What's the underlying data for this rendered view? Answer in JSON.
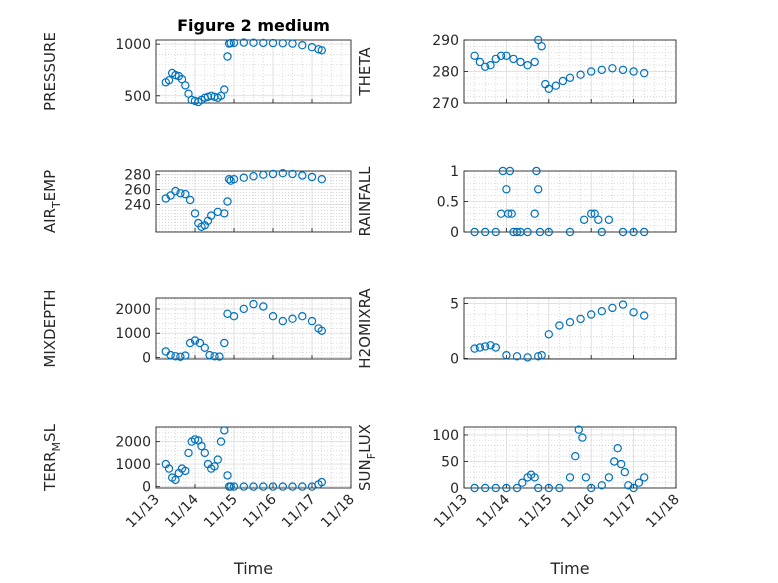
{
  "chart_data": [
    {
      "type": "scatter",
      "title": "Figure 2 medium",
      "ylabel": "PRESSURE",
      "xlabel": "",
      "xlim": [
        "11/13",
        "11/18"
      ],
      "ylim": [
        430,
        1040
      ],
      "yticks": [
        500,
        1000
      ],
      "grid": true,
      "x": [
        "11/13 06:00",
        "11/13 08:00",
        "11/13 10:00",
        "11/13 12:00",
        "11/13 14:00",
        "11/13 16:00",
        "11/13 18:00",
        "11/13 20:00",
        "11/13 22:00",
        "11/14 00:00",
        "11/14 02:00",
        "11/14 04:00",
        "11/14 06:00",
        "11/14 08:00",
        "11/14 10:00",
        "11/14 12:00",
        "11/14 14:00",
        "11/14 16:00",
        "11/14 18:00",
        "11/14 20:00",
        "11/14 21:00",
        "11/14 22:00",
        "11/15 00:00",
        "11/15 06:00",
        "11/15 12:00",
        "11/15 18:00",
        "11/16 00:00",
        "11/16 06:00",
        "11/16 12:00",
        "11/16 18:00",
        "11/17 00:00",
        "11/17 04:00",
        "11/17 06:00"
      ],
      "y": [
        630,
        650,
        720,
        700,
        690,
        660,
        600,
        520,
        460,
        450,
        440,
        460,
        480,
        490,
        500,
        490,
        480,
        500,
        560,
        880,
        1005,
        1010,
        1012,
        1015,
        1014,
        1012,
        1010,
        1008,
        1005,
        990,
        970,
        950,
        940
      ]
    },
    {
      "type": "scatter",
      "ylabel": "THETA",
      "xlabel": "",
      "xlim": [
        "11/13",
        "11/18"
      ],
      "ylim": [
        270,
        290
      ],
      "yticks": [
        270,
        280,
        290
      ],
      "grid": true,
      "x": [
        "11/13 06:00",
        "11/13 09:00",
        "11/13 12:00",
        "11/13 15:00",
        "11/13 18:00",
        "11/13 21:00",
        "11/14 00:00",
        "11/14 04:00",
        "11/14 08:00",
        "11/14 12:00",
        "11/14 16:00",
        "11/14 18:00",
        "11/14 20:00",
        "11/14 22:00",
        "11/15 00:00",
        "11/15 04:00",
        "11/15 08:00",
        "11/15 12:00",
        "11/15 18:00",
        "11/16 00:00",
        "11/16 06:00",
        "11/16 12:00",
        "11/16 18:00",
        "11/17 00:00",
        "11/17 06:00"
      ],
      "y": [
        285,
        283,
        281.5,
        282,
        284,
        285,
        285,
        284,
        283,
        282,
        283,
        290,
        288,
        276,
        274.5,
        275.5,
        277,
        278,
        279,
        280,
        280.5,
        281,
        280.5,
        280,
        279.5
      ]
    },
    {
      "type": "scatter",
      "ylabel": "AIR_TEMP",
      "xlabel": "",
      "xlim": [
        "11/13",
        "11/18"
      ],
      "ylim": [
        203,
        285
      ],
      "yticks": [
        240,
        260,
        280
      ],
      "grid": true,
      "x": [
        "11/13 06:00",
        "11/13 09:00",
        "11/13 12:00",
        "11/13 15:00",
        "11/13 18:00",
        "11/13 21:00",
        "11/14 00:00",
        "11/14 02:00",
        "11/14 04:00",
        "11/14 06:00",
        "11/14 08:00",
        "11/14 10:00",
        "11/14 14:00",
        "11/14 18:00",
        "11/14 20:00",
        "11/14 21:00",
        "11/14 22:00",
        "11/15 00:00",
        "11/15 06:00",
        "11/15 12:00",
        "11/15 18:00",
        "11/16 00:00",
        "11/16 06:00",
        "11/16 12:00",
        "11/16 18:00",
        "11/17 00:00",
        "11/17 06:00"
      ],
      "y": [
        248,
        252,
        258,
        255,
        254,
        246,
        228,
        215,
        210,
        212,
        218,
        225,
        230,
        228,
        244,
        274,
        272,
        274,
        276,
        278,
        280,
        281,
        282,
        281,
        279,
        277,
        274
      ]
    },
    {
      "type": "scatter",
      "ylabel": "RAINFALL",
      "xlabel": "",
      "xlim": [
        "11/13",
        "11/18"
      ],
      "ylim": [
        0,
        1
      ],
      "yticks": [
        0,
        0.5,
        1
      ],
      "grid": true,
      "x": [
        "11/13 06:00",
        "11/13 12:00",
        "11/13 18:00",
        "11/13 21:00",
        "11/13 22:00",
        "11/14 00:00",
        "11/14 01:00",
        "11/14 02:00",
        "11/14 03:00",
        "11/14 04:00",
        "11/14 06:00",
        "11/14 08:00",
        "11/14 12:00",
        "11/14 16:00",
        "11/14 17:00",
        "11/14 18:00",
        "11/14 19:00",
        "11/15 00:00",
        "11/15 12:00",
        "11/15 20:00",
        "11/16 00:00",
        "11/16 02:00",
        "11/16 04:00",
        "11/16 06:00",
        "11/16 10:00",
        "11/16 18:00",
        "11/17 00:00",
        "11/17 06:00"
      ],
      "y": [
        0,
        0,
        0,
        0.3,
        1,
        0.7,
        0.3,
        1,
        0.3,
        0,
        0,
        0,
        0,
        0.3,
        1,
        0.7,
        0,
        0,
        0,
        0.2,
        0.3,
        0.3,
        0.2,
        0,
        0.2,
        0,
        0,
        0
      ]
    },
    {
      "type": "scatter",
      "ylabel": "MIXDEPTH",
      "xlabel": "",
      "xlim": [
        "11/13",
        "11/18"
      ],
      "ylim": [
        -60,
        2450
      ],
      "yticks": [
        0,
        1000,
        2000
      ],
      "grid": true,
      "x": [
        "11/13 06:00",
        "11/13 09:00",
        "11/13 12:00",
        "11/13 15:00",
        "11/13 18:00",
        "11/13 21:00",
        "11/14 00:00",
        "11/14 03:00",
        "11/14 06:00",
        "11/14 09:00",
        "11/14 12:00",
        "11/14 15:00",
        "11/14 18:00",
        "11/14 20:00",
        "11/15 00:00",
        "11/15 06:00",
        "11/15 12:00",
        "11/15 18:00",
        "11/16 00:00",
        "11/16 06:00",
        "11/16 12:00",
        "11/16 18:00",
        "11/17 00:00",
        "11/17 04:00",
        "11/17 06:00"
      ],
      "y": [
        250,
        100,
        50,
        30,
        80,
        600,
        700,
        600,
        400,
        100,
        50,
        40,
        600,
        1800,
        1700,
        2000,
        2200,
        2100,
        1700,
        1500,
        1600,
        1700,
        1500,
        1200,
        1100
      ]
    },
    {
      "type": "scatter",
      "ylabel": "H2OMIXRA",
      "xlabel": "",
      "xlim": [
        "11/13",
        "11/18"
      ],
      "ylim": [
        -0.05,
        5.5
      ],
      "yticks": [
        0,
        5
      ],
      "grid": true,
      "x": [
        "11/13 06:00",
        "11/13 09:00",
        "11/13 12:00",
        "11/13 15:00",
        "11/13 18:00",
        "11/14 00:00",
        "11/14 06:00",
        "11/14 12:00",
        "11/14 18:00",
        "11/14 20:00",
        "11/15 00:00",
        "11/15 06:00",
        "11/15 12:00",
        "11/15 18:00",
        "11/16 00:00",
        "11/16 06:00",
        "11/16 12:00",
        "11/16 18:00",
        "11/17 00:00",
        "11/17 06:00"
      ],
      "y": [
        0.9,
        1,
        1.1,
        1.2,
        1,
        0.3,
        0.2,
        0.1,
        0.2,
        0.3,
        2.2,
        3,
        3.3,
        3.6,
        4,
        4.3,
        4.6,
        4.9,
        4.2,
        3.9
      ]
    },
    {
      "type": "scatter",
      "ylabel": "TERR_MSL",
      "xlabel": "Time",
      "xlim": [
        "11/13",
        "11/18"
      ],
      "xticks": [
        "11/13",
        "11/14",
        "11/15",
        "11/16",
        "11/17",
        "11/18"
      ],
      "ylim": [
        -60,
        2650
      ],
      "yticks": [
        0,
        1000,
        2000
      ],
      "grid": true,
      "x": [
        "11/13 06:00",
        "11/13 08:00",
        "11/13 10:00",
        "11/13 12:00",
        "11/13 14:00",
        "11/13 16:00",
        "11/13 18:00",
        "11/13 20:00",
        "11/13 22:00",
        "11/14 00:00",
        "11/14 02:00",
        "11/14 04:00",
        "11/14 06:00",
        "11/14 08:00",
        "11/14 10:00",
        "11/14 12:00",
        "11/14 14:00",
        "11/14 16:00",
        "11/14 18:00",
        "11/14 20:00",
        "11/14 21:00",
        "11/14 22:00",
        "11/15 00:00",
        "11/15 06:00",
        "11/15 12:00",
        "11/15 18:00",
        "11/16 00:00",
        "11/16 06:00",
        "11/16 12:00",
        "11/16 18:00",
        "11/17 00:00",
        "11/17 04:00",
        "11/17 06:00"
      ],
      "y": [
        1000,
        800,
        400,
        300,
        600,
        800,
        700,
        1500,
        2000,
        2100,
        2050,
        1800,
        1500,
        1000,
        800,
        900,
        1200,
        2000,
        2500,
        500,
        0,
        0,
        0,
        0,
        0,
        0,
        0,
        0,
        0,
        0,
        0,
        100,
        200
      ]
    },
    {
      "type": "scatter",
      "ylabel": "SUN_FLUX",
      "xlabel": "Time",
      "xlim": [
        "11/13",
        "11/18"
      ],
      "xticks": [
        "11/13",
        "11/14",
        "11/15",
        "11/16",
        "11/17",
        "11/18"
      ],
      "ylim": [
        0,
        115
      ],
      "yticks": [
        0,
        50,
        100
      ],
      "grid": true,
      "x": [
        "11/13 06:00",
        "11/13 12:00",
        "11/13 18:00",
        "11/14 00:00",
        "11/14 06:00",
        "11/14 09:00",
        "11/14 12:00",
        "11/14 14:00",
        "11/14 16:00",
        "11/14 18:00",
        "11/15 00:00",
        "11/15 06:00",
        "11/15 12:00",
        "11/15 15:00",
        "11/15 17:00",
        "11/15 19:00",
        "11/15 21:00",
        "11/16 00:00",
        "11/16 06:00",
        "11/16 10:00",
        "11/16 13:00",
        "11/16 15:00",
        "11/16 17:00",
        "11/16 19:00",
        "11/16 21:00",
        "11/17 00:00",
        "11/17 03:00",
        "11/17 06:00"
      ],
      "y": [
        0,
        0,
        0,
        0,
        0,
        10,
        20,
        25,
        20,
        0,
        0,
        0,
        20,
        60,
        110,
        95,
        20,
        0,
        5,
        20,
        50,
        75,
        45,
        30,
        5,
        0,
        10,
        20
      ]
    }
  ]
}
